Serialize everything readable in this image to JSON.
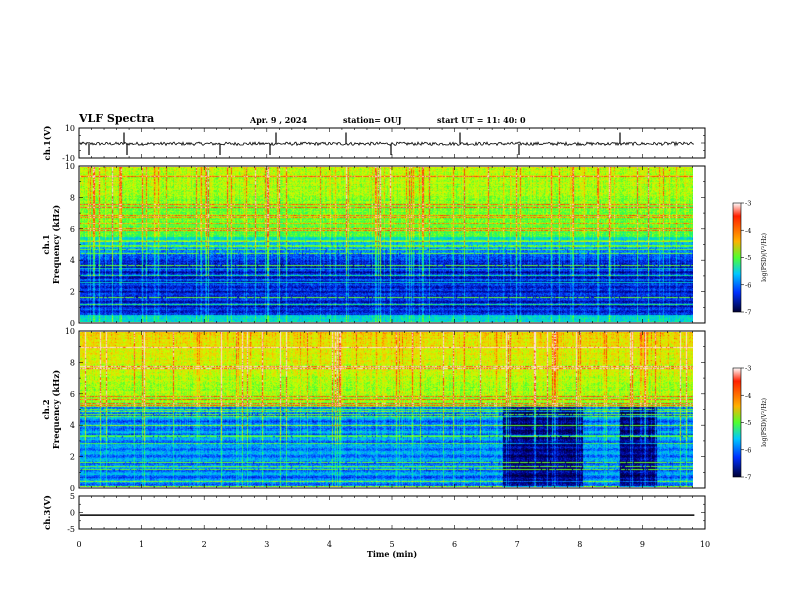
{
  "header": {
    "title": "VLF Spectra",
    "date": "Apr. 9  , 2024",
    "station": "station= OUJ",
    "start_ut": "start  UT  =   11: 40: 0"
  },
  "colors": {
    "waveform": "#000000",
    "colormap": [
      "#000033",
      "#0000a0",
      "#0050ff",
      "#00c8ff",
      "#00e8a0",
      "#50ff30",
      "#d8ff00",
      "#ffb000",
      "#ff2000",
      "#ffffff"
    ]
  },
  "chart_data": [
    {
      "type": "line",
      "name": "ch1-waveform",
      "ylabel": "ch.1(V)",
      "ylim": [
        -10,
        10
      ],
      "yticks": [
        "10",
        "-10"
      ],
      "xlim": [
        0,
        10
      ],
      "mean_value": -0.5
    },
    {
      "type": "heatmap",
      "name": "ch1-spectrogram",
      "ylabel": "ch.1\nFrequency (kHz)",
      "ylim": [
        0,
        10
      ],
      "yticks": [
        "0",
        "2",
        "4",
        "6",
        "8",
        "10"
      ],
      "xlim": [
        0,
        9.83
      ],
      "zlim": [
        -7,
        -3
      ],
      "colorbar": {
        "label": "log(PSD)(V²/Hz)",
        "ticks": [
          "-3",
          "-4",
          "-5",
          "-6",
          "-7"
        ]
      }
    },
    {
      "type": "heatmap",
      "name": "ch2-spectrogram",
      "ylabel": "ch.2\nFrequency (kHz)",
      "ylim": [
        0,
        10
      ],
      "yticks": [
        "0",
        "2",
        "4",
        "6",
        "8",
        "10"
      ],
      "xlim": [
        0,
        9.83
      ],
      "zlim": [
        -7,
        -3
      ],
      "colorbar": {
        "label": "log(PSD)(V²/Hz)",
        "ticks": [
          "-3",
          "-4",
          "-5",
          "-6",
          "-7"
        ]
      }
    },
    {
      "type": "line",
      "name": "ch3-waveform",
      "ylabel": "ch.3(V)",
      "ylim": [
        -5,
        5
      ],
      "yticks": [
        "5",
        "0",
        "-5"
      ],
      "xlim": [
        0,
        10
      ],
      "constant_value": -0.8
    }
  ],
  "xaxis": {
    "label": "Time  (min)",
    "range": [
      0,
      10
    ],
    "ticks": [
      "0",
      "1",
      "2",
      "3",
      "4",
      "5",
      "6",
      "7",
      "8",
      "9",
      "10"
    ]
  }
}
